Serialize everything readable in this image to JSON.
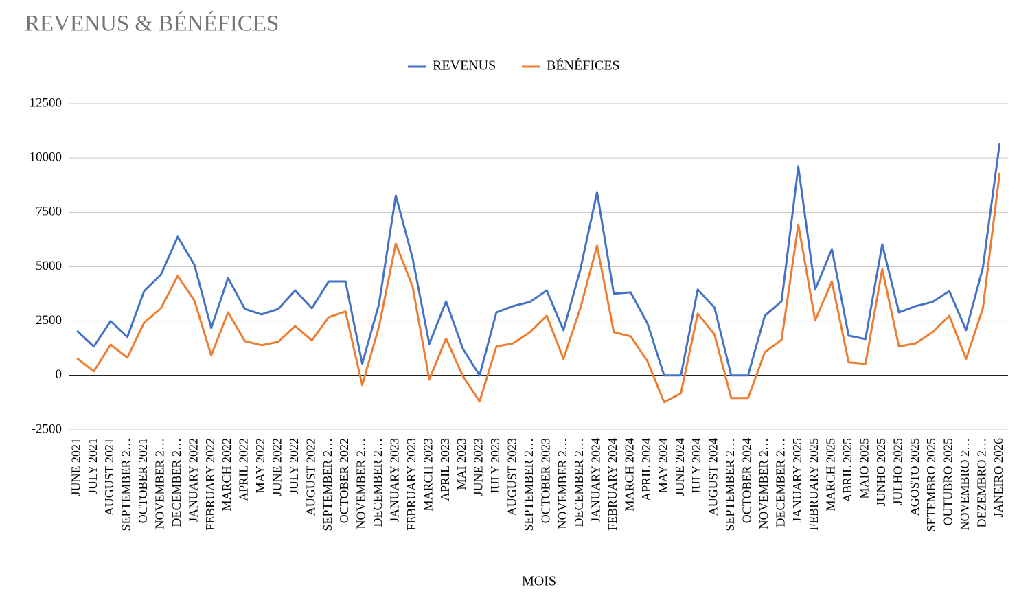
{
  "chart_data": {
    "type": "line",
    "title": "REVENUS & BÉNÉFICES",
    "x_label": "MOIS",
    "categories": [
      "JUNE 2021",
      "JULY 2021",
      "AUGUST 2021",
      "SEPTEMBER 2…",
      "OCTOBER 2021",
      "NOVEMBER 2…",
      "DECEMBER 2…",
      "JANUARY 2022",
      "FEBRUARY 2022",
      "MARCH 2022",
      "APRIL 2022",
      "MAY 2022",
      "JUNE 2022",
      "JULY 2022",
      "AUGUST 2022",
      "SEPTEMBER 2…",
      "OCTOBER 2022",
      "NOVEMBER 2…",
      "DECEMBER 2…",
      "JANUARY 2023",
      "FEBRUARY 2023",
      "MARCH 2023",
      "APRIL 2023",
      "MAI 2023",
      "JUNE 2023",
      "JULY 2023",
      "AUGUST 2023",
      "SEPTEMBER 2…",
      "OCTOBER 2023",
      "NOVEMBER 2…",
      "DECEMBER 2…",
      "JANUARY 2024",
      "FEBRUARY 2024",
      "MARCH 2024",
      "APRIL 2024",
      "MAY 2024",
      "JUNE 2024",
      "JULY 2024",
      "AUGUST 2024",
      "SEPTEMBER 2…",
      "OCTOBER 2024",
      "NOVEMBER 2…",
      "DECEMBER 2…",
      "JANUARY 2025",
      "FEBRUARY 2025",
      "MARCH 2025",
      "ABRIL 2025",
      "MAIO 2025",
      "JUNHO 2025",
      "JULHO 2025",
      "AGOSTO 2025",
      "SETEMBRO 2025",
      "OUTUBRO 2025",
      "NOVEMBRO 2…",
      "DEZEMBRO 2…",
      "JANEIRO 2026"
    ],
    "series": [
      {
        "name": "REVENUS",
        "color": "#4472c4",
        "values": [
          2050,
          1330,
          2500,
          1770,
          3880,
          4640,
          6380,
          5080,
          2180,
          4480,
          3060,
          2810,
          3060,
          3910,
          3090,
          4320,
          4320,
          540,
          3280,
          8270,
          5400,
          1450,
          3410,
          1230,
          0,
          2900,
          3190,
          3380,
          3910,
          2080,
          4860,
          8430,
          3760,
          3820,
          2400,
          0,
          0,
          3950,
          3120,
          0,
          0,
          2750,
          3410,
          9600,
          3950,
          5810,
          1830,
          1670,
          6030,
          2900,
          3190,
          3380,
          3880,
          2080,
          4960,
          10670
        ]
      },
      {
        "name": "BÉNÉFICES",
        "color": "#ed7d31",
        "values": [
          790,
          190,
          1420,
          820,
          2430,
          3090,
          4580,
          3440,
          920,
          2900,
          1580,
          1390,
          1550,
          2270,
          1610,
          2680,
          2940,
          -440,
          2240,
          6060,
          4100,
          -190,
          1700,
          -30,
          -1200,
          1330,
          1480,
          1990,
          2750,
          760,
          3090,
          5970,
          1990,
          1800,
          660,
          -1230,
          -820,
          2840,
          1890,
          -1040,
          -1040,
          1070,
          1640,
          6940,
          2530,
          4320,
          600,
          540,
          4890,
          1330,
          1480,
          1990,
          2750,
          760,
          3090,
          9310
        ]
      }
    ],
    "ylim": [
      -2500,
      12500
    ],
    "yticks": [
      -2500,
      0,
      2500,
      5000,
      7500,
      10000,
      12500
    ],
    "grid": true,
    "legend": "top"
  }
}
